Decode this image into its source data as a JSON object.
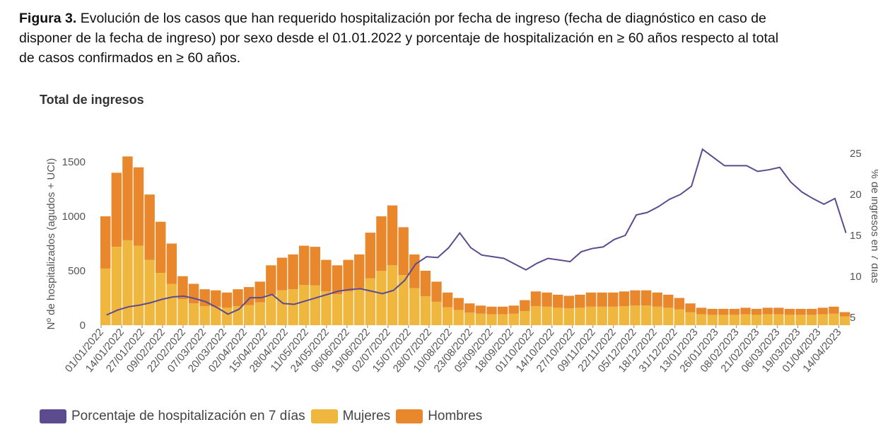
{
  "caption": {
    "label": "Figura 3.",
    "line1": " Evolución de los casos que han requerido hospitalización por fecha de ingreso (fecha de diagnóstico en caso de",
    "line2": "disponer de la fecha de ingreso) por sexo desde el 01.01.2022 y porcentaje de hospitalización en ≥ 60 años respecto al total",
    "line3": "de casos confirmados en ≥ 60 años."
  },
  "chart_data": {
    "type": "bar",
    "title": "Total de ingresos",
    "ylabel": "Nº de hospitalizados (agudos + UCI)",
    "y2label": "% de ingresos en 7 días",
    "ylim": [
      0,
      1700
    ],
    "y2lim": [
      4,
      27
    ],
    "yticks": [
      0,
      500,
      1000,
      1500
    ],
    "y2ticks": [
      5,
      10,
      15,
      20,
      25
    ],
    "x_start": "01/01/2022",
    "interval": "weekly",
    "stacked": true,
    "grid": false,
    "legend_placement": "bottom-left",
    "xtick_labels": [
      "01/01/2022",
      "14/01/2022",
      "27/01/2022",
      "09/02/2022",
      "22/02/2022",
      "07/03/2022",
      "20/03/2022",
      "02/04/2022",
      "15/04/2022",
      "28/04/2022",
      "11/05/2022",
      "24/05/2022",
      "06/06/2022",
      "19/06/2022",
      "02/07/2022",
      "15/07/2022",
      "28/07/2022",
      "10/08/2022",
      "23/08/2022",
      "05/09/2022",
      "18/09/2022",
      "01/10/2022",
      "14/10/2022",
      "27/10/2022",
      "09/11/2022",
      "22/11/2022",
      "05/12/2022",
      "18/12/2022",
      "31/12/2022",
      "13/01/2023",
      "26/01/2023",
      "08/02/2023",
      "21/02/2023",
      "06/03/2023",
      "19/03/2023",
      "01/04/2023",
      "14/04/2023"
    ],
    "series": [
      {
        "name": "Mujeres",
        "type": "bar",
        "axis": "left",
        "color": "#f0b73e",
        "values": [
          520,
          720,
          780,
          730,
          600,
          480,
          380,
          240,
          200,
          175,
          170,
          160,
          175,
          185,
          210,
          280,
          320,
          330,
          370,
          365,
          310,
          285,
          310,
          340,
          430,
          500,
          550,
          460,
          340,
          265,
          215,
          165,
          140,
          115,
          105,
          100,
          100,
          105,
          130,
          175,
          170,
          160,
          155,
          160,
          170,
          170,
          170,
          175,
          180,
          180,
          170,
          160,
          145,
          120,
          100,
          95,
          95,
          95,
          100,
          95,
          100,
          100,
          95,
          95,
          95,
          100,
          105,
          80
        ]
      },
      {
        "name": "Hombres",
        "type": "bar",
        "axis": "left",
        "color": "#e8872b",
        "values": [
          480,
          680,
          770,
          720,
          600,
          470,
          370,
          210,
          180,
          155,
          150,
          140,
          155,
          165,
          190,
          270,
          300,
          320,
          360,
          355,
          290,
          265,
          290,
          310,
          420,
          500,
          550,
          440,
          310,
          235,
          185,
          135,
          110,
          85,
          75,
          70,
          70,
          75,
          100,
          135,
          130,
          120,
          115,
          120,
          130,
          130,
          130,
          135,
          140,
          140,
          130,
          120,
          105,
          80,
          60,
          55,
          55,
          55,
          60,
          55,
          60,
          60,
          55,
          55,
          55,
          60,
          65,
          40
        ]
      },
      {
        "name": "Porcentaje de hospitalización en 7 días",
        "type": "line",
        "axis": "right",
        "color": "#5c4b8e",
        "values": [
          5.3,
          5.9,
          6.3,
          6.5,
          6.8,
          7.2,
          7.5,
          7.6,
          7.3,
          6.9,
          6.2,
          5.4,
          6.0,
          7.4,
          7.4,
          7.8,
          6.7,
          6.6,
          7.0,
          7.4,
          7.8,
          8.2,
          8.4,
          8.5,
          8.2,
          7.9,
          8.3,
          9.5,
          11.5,
          12.4,
          12.3,
          13.5,
          15.3,
          13.5,
          12.6,
          12.4,
          12.2,
          11.5,
          10.8,
          11.6,
          12.2,
          12.0,
          11.8,
          13.0,
          13.4,
          13.6,
          14.5,
          15.0,
          17.5,
          17.8,
          18.5,
          19.4,
          20.0,
          21.0,
          25.5,
          24.5,
          23.5,
          23.5,
          23.5,
          22.8,
          23.0,
          23.3,
          21.5,
          20.3,
          19.5,
          18.8,
          19.5,
          15.3
        ]
      }
    ]
  },
  "legend": [
    {
      "label": "Porcentaje de hospitalización en 7 días",
      "color": "#5c4b8e"
    },
    {
      "label": "Mujeres",
      "color": "#f0b73e"
    },
    {
      "label": "Hombres",
      "color": "#e8872b"
    }
  ]
}
